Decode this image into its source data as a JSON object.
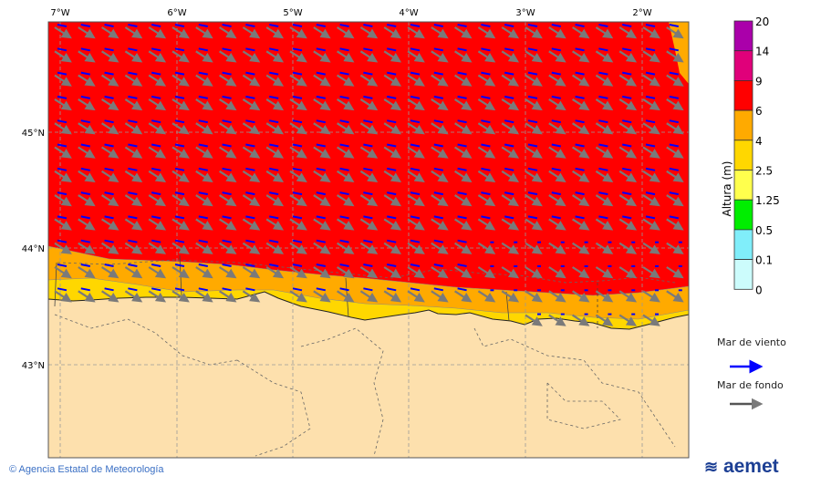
{
  "map": {
    "lon_labels": [
      "7°W",
      "6°W",
      "5°W",
      "4°W",
      "3°W",
      "2°W"
    ],
    "lat_labels": [
      "45°N",
      "44°N",
      "43°N"
    ],
    "land_color": "#fde0ad",
    "wind_sea_arrow_color": "#0000ff",
    "swell_arrow_color": "#7a7a7a"
  },
  "colorbar": {
    "title": "Altura (m)",
    "ticks": [
      "20",
      "14",
      "9",
      "6",
      "4",
      "2.5",
      "1.25",
      "0.5",
      "0.1",
      "0"
    ],
    "colors": [
      "#aa00aa",
      "#e0007a",
      "#ff0000",
      "#ffaa00",
      "#ffd700",
      "#ffff4d",
      "#00ee00",
      "#80eefa",
      "#ccfcfc"
    ]
  },
  "legend": {
    "wind_sea": "Mar de viento",
    "swell": "Mar de fondo"
  },
  "footer": {
    "copyright": "© Agencia Estatal de Meteorología",
    "logo": "aemet"
  }
}
